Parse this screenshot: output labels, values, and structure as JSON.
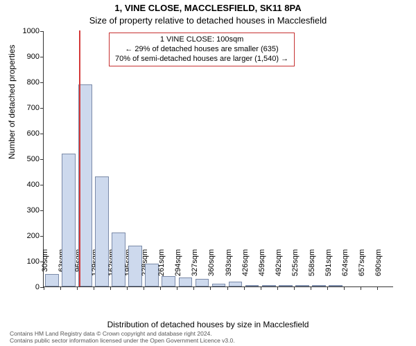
{
  "header": {
    "line1": "1, VINE CLOSE, MACCLESFIELD, SK11 8PA",
    "line2": "Size of property relative to detached houses in Macclesfield"
  },
  "chart": {
    "type": "histogram",
    "ylabel": "Number of detached properties",
    "xlabel": "Distribution of detached houses by size in Macclesfield",
    "ylim_max": 1000,
    "ytick_step": 100,
    "yticks": [
      0,
      100,
      200,
      300,
      400,
      500,
      600,
      700,
      800,
      900,
      1000
    ],
    "xticks": [
      "30sqm",
      "63sqm",
      "96sqm",
      "129sqm",
      "162sqm",
      "195sqm",
      "228sqm",
      "261sqm",
      "294sqm",
      "327sqm",
      "360sqm",
      "393sqm",
      "426sqm",
      "459sqm",
      "492sqm",
      "525sqm",
      "558sqm",
      "591sqm",
      "624sqm",
      "657sqm",
      "690sqm"
    ],
    "bars": [
      50,
      520,
      790,
      430,
      210,
      160,
      90,
      40,
      35,
      30,
      10,
      20,
      5,
      5,
      2,
      2,
      2,
      2,
      0,
      0,
      0
    ],
    "bar_fill": "#cdd9ed",
    "bar_border": "#7a8aa8",
    "marker_line_color": "#d43a3a",
    "marker_position_sqm": 100,
    "xrange_min": 30,
    "xrange_max": 723,
    "plot_bg": "#ffffff",
    "axis_color": "#333333",
    "label_fontsize": 12,
    "tick_fontsize": 11
  },
  "annotation": {
    "line1": "1 VINE CLOSE: 100sqm",
    "line2": "← 29% of detached houses are smaller (635)",
    "line3": "70% of semi-detached houses are larger (1,540) →",
    "border_color": "#c63030"
  },
  "footer": {
    "line1": "Contains HM Land Registry data © Crown copyright and database right 2024.",
    "line2": "Contains public sector information licensed under the Open Government Licence v3.0."
  }
}
